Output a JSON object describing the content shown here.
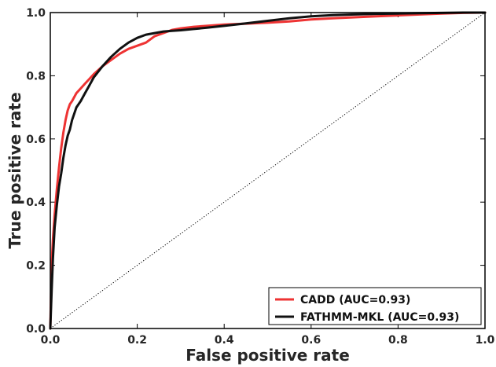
{
  "chart_data": {
    "type": "line",
    "xlabel": "False positive rate",
    "ylabel": "True positive rate",
    "xlim": [
      0.0,
      1.0
    ],
    "ylim": [
      0.0,
      1.0
    ],
    "x_ticks": [
      "0.0",
      "0.2",
      "0.4",
      "0.6",
      "0.8",
      "1.0"
    ],
    "y_ticks": [
      "0.0",
      "0.2",
      "0.4",
      "0.6",
      "0.8",
      "1.0"
    ],
    "grid": false,
    "legend_position": "bottom-right",
    "reference_line": {
      "style": "dotted",
      "color": "#000000",
      "x": [
        0,
        1
      ],
      "y": [
        0,
        1
      ]
    },
    "series": [
      {
        "name": "CADD (AUC=0.93)",
        "color": "#ee3333",
        "x": [
          0.0,
          0.003,
          0.006,
          0.01,
          0.015,
          0.02,
          0.025,
          0.03,
          0.035,
          0.04,
          0.045,
          0.05,
          0.06,
          0.07,
          0.08,
          0.09,
          0.1,
          0.12,
          0.14,
          0.16,
          0.18,
          0.2,
          0.22,
          0.24,
          0.26,
          0.28,
          0.3,
          0.33,
          0.36,
          0.4,
          0.45,
          0.5,
          0.55,
          0.6,
          0.65,
          0.7,
          0.75,
          0.8,
          0.85,
          0.9,
          0.95,
          1.0
        ],
        "y": [
          0.0,
          0.2,
          0.28,
          0.36,
          0.44,
          0.51,
          0.57,
          0.62,
          0.66,
          0.69,
          0.71,
          0.72,
          0.745,
          0.76,
          0.775,
          0.79,
          0.805,
          0.83,
          0.85,
          0.87,
          0.885,
          0.895,
          0.905,
          0.925,
          0.935,
          0.945,
          0.95,
          0.955,
          0.958,
          0.962,
          0.965,
          0.968,
          0.972,
          0.978,
          0.982,
          0.985,
          0.988,
          0.991,
          0.994,
          0.997,
          0.999,
          1.0
        ]
      },
      {
        "name": "FATHMM-MKL (AUC=0.93)",
        "color": "#111111",
        "x": [
          0.0,
          0.003,
          0.006,
          0.01,
          0.015,
          0.02,
          0.025,
          0.03,
          0.035,
          0.04,
          0.045,
          0.05,
          0.06,
          0.07,
          0.08,
          0.09,
          0.1,
          0.12,
          0.14,
          0.16,
          0.18,
          0.2,
          0.22,
          0.24,
          0.26,
          0.28,
          0.3,
          0.33,
          0.36,
          0.4,
          0.45,
          0.5,
          0.55,
          0.6,
          0.65,
          0.7,
          0.75,
          0.8,
          0.85,
          0.9,
          0.95,
          1.0
        ],
        "y": [
          0.0,
          0.12,
          0.22,
          0.32,
          0.39,
          0.45,
          0.49,
          0.54,
          0.58,
          0.61,
          0.63,
          0.66,
          0.7,
          0.72,
          0.745,
          0.77,
          0.795,
          0.83,
          0.86,
          0.885,
          0.905,
          0.92,
          0.93,
          0.935,
          0.94,
          0.942,
          0.944,
          0.948,
          0.952,
          0.958,
          0.966,
          0.974,
          0.982,
          0.988,
          0.992,
          0.994,
          0.996,
          0.997,
          0.998,
          0.999,
          1.0,
          1.0
        ]
      }
    ]
  }
}
